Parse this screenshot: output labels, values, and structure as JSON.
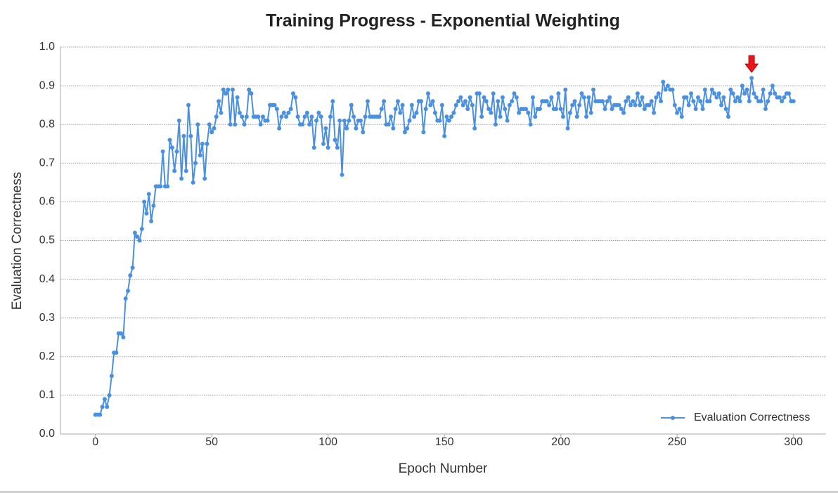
{
  "chart_data": {
    "type": "line",
    "title": "Training Progress - Exponential Weighting",
    "x_label": "Epoch Number",
    "y_label": "Evaluation Correctness",
    "x": [
      0,
      1,
      2,
      3,
      4,
      5,
      6,
      7,
      8,
      9,
      10,
      11,
      12,
      13,
      14,
      15,
      16,
      17,
      18,
      19,
      20,
      21,
      22,
      23,
      24,
      25,
      26,
      27,
      28,
      29,
      30,
      31,
      32,
      33,
      34,
      35,
      36,
      37,
      38,
      39,
      40,
      41,
      42,
      43,
      44,
      45,
      46,
      47,
      48,
      49,
      50,
      51,
      52,
      53,
      54,
      55,
      56,
      57,
      58,
      59,
      60,
      61,
      62,
      63,
      64,
      65,
      66,
      67,
      68,
      69,
      70,
      71,
      72,
      73,
      74,
      75,
      76,
      77,
      78,
      79,
      80,
      81,
      82,
      83,
      84,
      85,
      86,
      87,
      88,
      89,
      90,
      91,
      92,
      93,
      94,
      95,
      96,
      97,
      98,
      99,
      100,
      101,
      102,
      103,
      104,
      105,
      106,
      107,
      108,
      109,
      110,
      111,
      112,
      113,
      114,
      115,
      116,
      117,
      118,
      119,
      120,
      121,
      122,
      123,
      124,
      125,
      126,
      127,
      128,
      129,
      130,
      131,
      132,
      133,
      134,
      135,
      136,
      137,
      138,
      139,
      140,
      141,
      142,
      143,
      144,
      145,
      146,
      147,
      148,
      149,
      150,
      151,
      152,
      153,
      154,
      155,
      156,
      157,
      158,
      159,
      160,
      161,
      162,
      163,
      164,
      165,
      166,
      167,
      168,
      169,
      170,
      171,
      172,
      173,
      174,
      175,
      176,
      177,
      178,
      179,
      180,
      181,
      182,
      183,
      184,
      185,
      186,
      187,
      188,
      189,
      190,
      191,
      192,
      193,
      194,
      195,
      196,
      197,
      198,
      199,
      200,
      201,
      202,
      203,
      204,
      205,
      206,
      207,
      208,
      209,
      210,
      211,
      212,
      213,
      214,
      215,
      216,
      217,
      218,
      219,
      220,
      221,
      222,
      223,
      224,
      225,
      226,
      227,
      228,
      229,
      230,
      231,
      232,
      233,
      234,
      235,
      236,
      237,
      238,
      239,
      240,
      241,
      242,
      243,
      244,
      245,
      246,
      247,
      248,
      249,
      250,
      251,
      252,
      253,
      254,
      255,
      256,
      257,
      258,
      259,
      260,
      261,
      262,
      263,
      264,
      265,
      266,
      267,
      268,
      269,
      270,
      271,
      272,
      273,
      274,
      275,
      276,
      277,
      278,
      279,
      280,
      281,
      282,
      283,
      284,
      285,
      286,
      287,
      288,
      289,
      290,
      291,
      292,
      293,
      294,
      295,
      296,
      297,
      298,
      299,
      300
    ],
    "series": [
      {
        "name": "Evaluation Correctness",
        "color": "#4a90e2",
        "values": [
          0.05,
          0.05,
          0.05,
          0.07,
          0.09,
          0.07,
          0.1,
          0.15,
          0.21,
          0.21,
          0.26,
          0.26,
          0.25,
          0.35,
          0.37,
          0.41,
          0.43,
          0.52,
          0.51,
          0.5,
          0.53,
          0.6,
          0.57,
          0.62,
          0.55,
          0.59,
          0.64,
          0.64,
          0.64,
          0.73,
          0.64,
          0.64,
          0.76,
          0.74,
          0.68,
          0.73,
          0.81,
          0.66,
          0.77,
          0.68,
          0.85,
          0.77,
          0.65,
          0.7,
          0.8,
          0.72,
          0.75,
          0.66,
          0.75,
          0.8,
          0.78,
          0.79,
          0.82,
          0.86,
          0.83,
          0.89,
          0.88,
          0.89,
          0.8,
          0.89,
          0.8,
          0.87,
          0.83,
          0.82,
          0.8,
          0.82,
          0.89,
          0.88,
          0.82,
          0.82,
          0.82,
          0.8,
          0.82,
          0.81,
          0.81,
          0.85,
          0.85,
          0.85,
          0.84,
          0.79,
          0.82,
          0.83,
          0.82,
          0.83,
          0.84,
          0.88,
          0.87,
          0.82,
          0.8,
          0.8,
          0.82,
          0.83,
          0.8,
          0.82,
          0.74,
          0.81,
          0.83,
          0.82,
          0.75,
          0.79,
          0.74,
          0.82,
          0.86,
          0.76,
          0.74,
          0.81,
          0.67,
          0.81,
          0.79,
          0.81,
          0.85,
          0.82,
          0.79,
          0.81,
          0.81,
          0.78,
          0.82,
          0.86,
          0.82,
          0.82,
          0.82,
          0.82,
          0.82,
          0.84,
          0.86,
          0.8,
          0.8,
          0.82,
          0.79,
          0.84,
          0.86,
          0.83,
          0.85,
          0.78,
          0.79,
          0.81,
          0.85,
          0.82,
          0.83,
          0.86,
          0.86,
          0.78,
          0.84,
          0.88,
          0.85,
          0.86,
          0.83,
          0.81,
          0.81,
          0.85,
          0.77,
          0.82,
          0.81,
          0.82,
          0.83,
          0.85,
          0.86,
          0.87,
          0.85,
          0.86,
          0.84,
          0.87,
          0.85,
          0.79,
          0.88,
          0.88,
          0.82,
          0.87,
          0.86,
          0.84,
          0.83,
          0.88,
          0.8,
          0.86,
          0.82,
          0.87,
          0.84,
          0.81,
          0.85,
          0.86,
          0.88,
          0.87,
          0.83,
          0.84,
          0.84,
          0.84,
          0.83,
          0.8,
          0.87,
          0.82,
          0.84,
          0.84,
          0.86,
          0.86,
          0.86,
          0.85,
          0.87,
          0.84,
          0.84,
          0.88,
          0.84,
          0.82,
          0.89,
          0.79,
          0.83,
          0.85,
          0.86,
          0.82,
          0.85,
          0.88,
          0.87,
          0.82,
          0.87,
          0.83,
          0.89,
          0.86,
          0.86,
          0.86,
          0.86,
          0.84,
          0.86,
          0.87,
          0.84,
          0.85,
          0.85,
          0.85,
          0.84,
          0.83,
          0.86,
          0.87,
          0.85,
          0.86,
          0.85,
          0.88,
          0.85,
          0.87,
          0.84,
          0.85,
          0.85,
          0.86,
          0.83,
          0.87,
          0.88,
          0.86,
          0.91,
          0.89,
          0.9,
          0.89,
          0.89,
          0.85,
          0.83,
          0.84,
          0.82,
          0.87,
          0.87,
          0.85,
          0.88,
          0.86,
          0.84,
          0.87,
          0.86,
          0.84,
          0.89,
          0.86,
          0.86,
          0.89,
          0.88,
          0.87,
          0.88,
          0.85,
          0.87,
          0.84,
          0.82,
          0.89,
          0.88,
          0.86,
          0.87,
          0.86,
          0.9,
          0.88,
          0.89,
          0.86,
          0.92,
          0.88,
          0.87,
          0.86,
          0.86,
          0.89,
          0.84,
          0.86,
          0.88,
          0.9,
          0.88,
          0.87,
          0.87,
          0.86,
          0.87,
          0.88,
          0.88,
          0.86,
          0.86
        ]
      }
    ],
    "xlim": [
      -15,
      314
    ],
    "xticks": [
      0,
      50,
      100,
      150,
      200,
      250,
      300
    ],
    "ylim": [
      0,
      1
    ],
    "yticks": [
      {
        "value": 0,
        "label": "0.0"
      },
      0.1,
      0.2,
      0.3,
      0.4,
      0.5,
      0.6,
      0.7,
      0.8,
      0.9,
      {
        "value": 1,
        "label": "1.0"
      }
    ],
    "grid": true,
    "legend": "lower-right"
  }
}
